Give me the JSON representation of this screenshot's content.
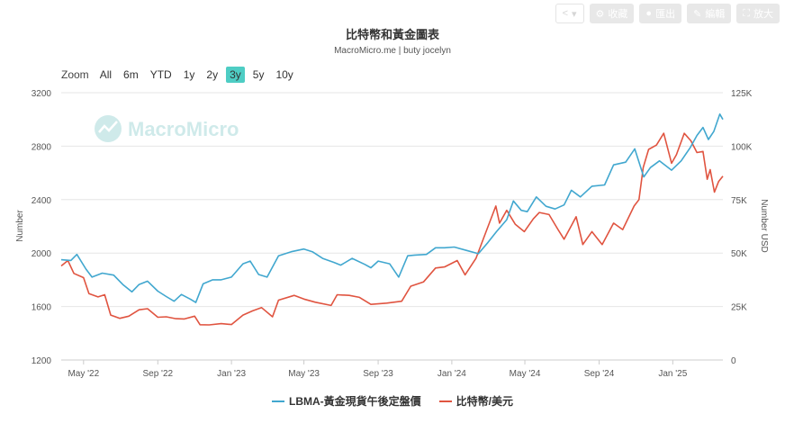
{
  "toolbar": {
    "share_label": "",
    "collect_label": "收藏",
    "export_label": "匯出",
    "edit_label": "編輯",
    "zoom_label": "放大"
  },
  "header": {
    "title": "比特幣和黃金圖表",
    "subtitle": "MacroMicro.me | buty jocelyn"
  },
  "range_selector": {
    "label": "Zoom",
    "buttons": [
      "All",
      "6m",
      "YTD",
      "1y",
      "2y",
      "3y",
      "5y",
      "10y"
    ],
    "active": "3y"
  },
  "watermark": "MacroMicro",
  "colors": {
    "gold": "#41a7cf",
    "btc": "#e05440",
    "grid": "#e6e6e6",
    "accent": "#4ecdc4"
  },
  "chart_data": {
    "type": "line",
    "title": "比特幣和黃金圖表",
    "xlabel": "",
    "ylabel_left": "Number",
    "ylabel_right": "Number USD",
    "ylim_left": [
      1200,
      3200
    ],
    "ylim_right": [
      0,
      125000
    ],
    "yticks_left": [
      "1200",
      "1600",
      "2000",
      "2400",
      "2800",
      "3200"
    ],
    "yticks_right": [
      "0",
      "25K",
      "50K",
      "75K",
      "100K",
      "125K"
    ],
    "yticks_right_values": [
      0,
      25000,
      50000,
      75000,
      100000,
      125000
    ],
    "x_range": [
      "2022-03-25",
      "2025-03-25"
    ],
    "x_ticks": [
      {
        "date": "2022-05-01",
        "label": "May '22"
      },
      {
        "date": "2022-09-01",
        "label": "Sep '22"
      },
      {
        "date": "2023-01-01",
        "label": "Jan '23"
      },
      {
        "date": "2023-05-01",
        "label": "May '23"
      },
      {
        "date": "2023-09-01",
        "label": "Sep '23"
      },
      {
        "date": "2024-01-01",
        "label": "Jan '24"
      },
      {
        "date": "2024-05-01",
        "label": "May '24"
      },
      {
        "date": "2024-09-01",
        "label": "Sep '24"
      },
      {
        "date": "2025-01-01",
        "label": "Jan '25"
      }
    ],
    "grid": true,
    "legend_position": "bottom",
    "series": [
      {
        "name": "LBMA-黃金現貨午後定盤價",
        "axis": "left",
        "points": [
          [
            "2022-03-25",
            1950
          ],
          [
            "2022-04-10",
            1945
          ],
          [
            "2022-04-20",
            1990
          ],
          [
            "2022-05-05",
            1880
          ],
          [
            "2022-05-15",
            1820
          ],
          [
            "2022-06-01",
            1850
          ],
          [
            "2022-06-20",
            1835
          ],
          [
            "2022-07-05",
            1765
          ],
          [
            "2022-07-20",
            1710
          ],
          [
            "2022-08-01",
            1765
          ],
          [
            "2022-08-15",
            1790
          ],
          [
            "2022-09-01",
            1715
          ],
          [
            "2022-09-15",
            1675
          ],
          [
            "2022-09-28",
            1640
          ],
          [
            "2022-10-10",
            1690
          ],
          [
            "2022-10-25",
            1655
          ],
          [
            "2022-11-03",
            1630
          ],
          [
            "2022-11-15",
            1770
          ],
          [
            "2022-12-01",
            1800
          ],
          [
            "2022-12-15",
            1800
          ],
          [
            "2023-01-01",
            1820
          ],
          [
            "2023-01-20",
            1920
          ],
          [
            "2023-02-01",
            1940
          ],
          [
            "2023-02-15",
            1840
          ],
          [
            "2023-03-01",
            1820
          ],
          [
            "2023-03-20",
            1980
          ],
          [
            "2023-04-10",
            2010
          ],
          [
            "2023-05-01",
            2030
          ],
          [
            "2023-05-15",
            2010
          ],
          [
            "2023-06-01",
            1960
          ],
          [
            "2023-06-20",
            1930
          ],
          [
            "2023-07-01",
            1910
          ],
          [
            "2023-07-20",
            1960
          ],
          [
            "2023-08-10",
            1915
          ],
          [
            "2023-08-20",
            1890
          ],
          [
            "2023-09-01",
            1940
          ],
          [
            "2023-09-20",
            1920
          ],
          [
            "2023-10-05",
            1820
          ],
          [
            "2023-10-20",
            1980
          ],
          [
            "2023-11-01",
            1985
          ],
          [
            "2023-11-20",
            1990
          ],
          [
            "2023-12-05",
            2040
          ],
          [
            "2023-12-20",
            2040
          ],
          [
            "2024-01-05",
            2045
          ],
          [
            "2024-01-25",
            2020
          ],
          [
            "2024-02-14",
            1995
          ],
          [
            "2024-03-01",
            2080
          ],
          [
            "2024-03-15",
            2160
          ],
          [
            "2024-04-01",
            2250
          ],
          [
            "2024-04-12",
            2390
          ],
          [
            "2024-04-25",
            2320
          ],
          [
            "2024-05-05",
            2310
          ],
          [
            "2024-05-20",
            2420
          ],
          [
            "2024-06-05",
            2350
          ],
          [
            "2024-06-20",
            2330
          ],
          [
            "2024-07-05",
            2360
          ],
          [
            "2024-07-17",
            2470
          ],
          [
            "2024-08-01",
            2420
          ],
          [
            "2024-08-20",
            2500
          ],
          [
            "2024-09-10",
            2510
          ],
          [
            "2024-09-25",
            2660
          ],
          [
            "2024-10-15",
            2680
          ],
          [
            "2024-10-30",
            2780
          ],
          [
            "2024-11-14",
            2570
          ],
          [
            "2024-11-25",
            2640
          ],
          [
            "2024-12-10",
            2690
          ],
          [
            "2024-12-30",
            2620
          ],
          [
            "2025-01-15",
            2690
          ],
          [
            "2025-01-30",
            2790
          ],
          [
            "2025-02-10",
            2880
          ],
          [
            "2025-02-20",
            2940
          ],
          [
            "2025-03-01",
            2850
          ],
          [
            "2025-03-10",
            2910
          ],
          [
            "2025-03-20",
            3040
          ],
          [
            "2025-03-25",
            3000
          ]
        ]
      },
      {
        "name": "比特幣/美元",
        "axis": "right",
        "points": [
          [
            "2022-03-25",
            44000
          ],
          [
            "2022-04-05",
            46500
          ],
          [
            "2022-04-15",
            40500
          ],
          [
            "2022-05-01",
            38500
          ],
          [
            "2022-05-10",
            31000
          ],
          [
            "2022-05-25",
            29500
          ],
          [
            "2022-06-05",
            30500
          ],
          [
            "2022-06-15",
            21000
          ],
          [
            "2022-06-30",
            19500
          ],
          [
            "2022-07-15",
            20500
          ],
          [
            "2022-08-01",
            23500
          ],
          [
            "2022-08-15",
            24000
          ],
          [
            "2022-09-01",
            20000
          ],
          [
            "2022-09-15",
            20200
          ],
          [
            "2022-10-01",
            19300
          ],
          [
            "2022-10-15",
            19200
          ],
          [
            "2022-11-01",
            20500
          ],
          [
            "2022-11-10",
            16500
          ],
          [
            "2022-11-25",
            16400
          ],
          [
            "2022-12-15",
            17000
          ],
          [
            "2023-01-01",
            16600
          ],
          [
            "2023-01-20",
            21000
          ],
          [
            "2023-02-05",
            23000
          ],
          [
            "2023-02-20",
            24500
          ],
          [
            "2023-03-10",
            20200
          ],
          [
            "2023-03-20",
            28000
          ],
          [
            "2023-04-15",
            30200
          ],
          [
            "2023-05-01",
            28500
          ],
          [
            "2023-05-20",
            27000
          ],
          [
            "2023-06-15",
            25500
          ],
          [
            "2023-06-25",
            30500
          ],
          [
            "2023-07-15",
            30200
          ],
          [
            "2023-08-01",
            29300
          ],
          [
            "2023-08-20",
            26000
          ],
          [
            "2023-09-15",
            26600
          ],
          [
            "2023-10-10",
            27500
          ],
          [
            "2023-10-25",
            34500
          ],
          [
            "2023-11-15",
            36500
          ],
          [
            "2023-12-05",
            43000
          ],
          [
            "2023-12-20",
            43500
          ],
          [
            "2024-01-10",
            46500
          ],
          [
            "2024-01-23",
            39800
          ],
          [
            "2024-02-10",
            47500
          ],
          [
            "2024-02-28",
            61000
          ],
          [
            "2024-03-14",
            72000
          ],
          [
            "2024-03-20",
            64000
          ],
          [
            "2024-04-01",
            70000
          ],
          [
            "2024-04-15",
            63500
          ],
          [
            "2024-04-30",
            60000
          ],
          [
            "2024-05-15",
            66000
          ],
          [
            "2024-05-25",
            69000
          ],
          [
            "2024-06-10",
            68000
          ],
          [
            "2024-06-25",
            61000
          ],
          [
            "2024-07-05",
            56500
          ],
          [
            "2024-07-25",
            67000
          ],
          [
            "2024-08-05",
            54000
          ],
          [
            "2024-08-20",
            60000
          ],
          [
            "2024-09-06",
            54000
          ],
          [
            "2024-09-25",
            64000
          ],
          [
            "2024-10-10",
            61000
          ],
          [
            "2024-10-29",
            72000
          ],
          [
            "2024-11-06",
            75000
          ],
          [
            "2024-11-13",
            90000
          ],
          [
            "2024-11-22",
            98500
          ],
          [
            "2024-12-05",
            100500
          ],
          [
            "2024-12-17",
            106000
          ],
          [
            "2024-12-30",
            92000
          ],
          [
            "2025-01-07",
            96000
          ],
          [
            "2025-01-20",
            106000
          ],
          [
            "2025-01-31",
            102500
          ],
          [
            "2025-02-10",
            97000
          ],
          [
            "2025-02-20",
            97500
          ],
          [
            "2025-02-27",
            84500
          ],
          [
            "2025-03-04",
            89000
          ],
          [
            "2025-03-11",
            78500
          ],
          [
            "2025-03-18",
            83500
          ],
          [
            "2025-03-25",
            86000
          ]
        ]
      }
    ]
  },
  "legend": {
    "gold_label": "LBMA-黃金現貨午後定盤價",
    "btc_label": "比特幣/美元"
  }
}
